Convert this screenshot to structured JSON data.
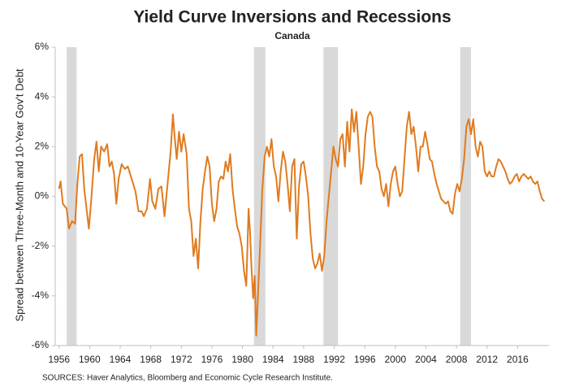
{
  "chart_data": {
    "type": "line",
    "title": "Yield Curve Inversions and Recessions",
    "subtitle": "Canada",
    "y_label": "Spread between Three-Month and 10-Year Gov't Debt",
    "source": "SOURCES: Haver Analytics, Bloomberg and Economic Cycle Research Institute.",
    "xlim": [
      1955.5,
      2020.1
    ],
    "xticks": [
      1956,
      1960,
      1964,
      1968,
      1972,
      1976,
      1980,
      1984,
      1988,
      1992,
      1996,
      2000,
      2004,
      2008,
      2012,
      2016
    ],
    "ylim": [
      -6,
      6
    ],
    "yticks": [
      {
        "value": 6,
        "label": "6%"
      },
      {
        "value": 4,
        "label": "4%"
      },
      {
        "value": 2,
        "label": "2%"
      },
      {
        "value": 0,
        "label": "0%"
      },
      {
        "value": -2,
        "label": "-2%"
      },
      {
        "value": -4,
        "label": "-4%"
      },
      {
        "value": -6,
        "label": "-6%"
      }
    ],
    "grid": false,
    "recession_color": "#d9d9d9",
    "recessions": [
      {
        "start": 1957.0,
        "end": 1958.3
      },
      {
        "start": 1981.5,
        "end": 1983.0
      },
      {
        "start": 1990.6,
        "end": 1992.5
      },
      {
        "start": 2008.5,
        "end": 2009.9
      }
    ],
    "series": [
      {
        "color": "#e07b1f",
        "x": [
          1956.0,
          1956.2,
          1956.5,
          1957.0,
          1957.3,
          1957.7,
          1958.1,
          1958.4,
          1958.7,
          1959.0,
          1959.3,
          1959.6,
          1959.9,
          1960.2,
          1960.6,
          1960.9,
          1961.2,
          1961.5,
          1961.9,
          1962.3,
          1962.6,
          1962.9,
          1963.2,
          1963.5,
          1963.8,
          1964.2,
          1964.6,
          1965.0,
          1965.3,
          1965.7,
          1966.0,
          1966.4,
          1966.8,
          1967.1,
          1967.5,
          1967.9,
          1968.2,
          1968.6,
          1969.0,
          1969.4,
          1969.8,
          1970.2,
          1970.6,
          1970.9,
          1971.1,
          1971.4,
          1971.7,
          1972.0,
          1972.3,
          1972.7,
          1973.0,
          1973.3,
          1973.6,
          1973.9,
          1974.2,
          1974.5,
          1974.8,
          1975.1,
          1975.4,
          1975.7,
          1976.0,
          1976.3,
          1976.6,
          1976.9,
          1977.2,
          1977.5,
          1977.8,
          1978.1,
          1978.4,
          1978.7,
          1979.0,
          1979.3,
          1979.6,
          1979.9,
          1980.2,
          1980.5,
          1980.8,
          1981.0,
          1981.2,
          1981.4,
          1981.6,
          1981.8,
          1982.0,
          1982.3,
          1982.6,
          1982.9,
          1983.2,
          1983.5,
          1983.8,
          1984.1,
          1984.4,
          1984.7,
          1985.0,
          1985.3,
          1985.6,
          1985.9,
          1986.2,
          1986.5,
          1986.8,
          1987.1,
          1987.4,
          1987.7,
          1988.0,
          1988.3,
          1988.6,
          1988.9,
          1989.2,
          1989.5,
          1989.8,
          1990.1,
          1990.4,
          1990.7,
          1991.0,
          1991.3,
          1991.6,
          1991.9,
          1992.2,
          1992.5,
          1992.8,
          1993.1,
          1993.4,
          1993.7,
          1994.0,
          1994.3,
          1994.6,
          1994.9,
          1995.2,
          1995.5,
          1995.8,
          1996.1,
          1996.4,
          1996.7,
          1997.0,
          1997.3,
          1997.6,
          1997.9,
          1998.2,
          1998.5,
          1998.8,
          1999.1,
          1999.4,
          1999.7,
          2000.0,
          2000.3,
          2000.6,
          2000.9,
          2001.2,
          2001.5,
          2001.8,
          2002.1,
          2002.4,
          2002.7,
          2003.0,
          2003.3,
          2003.6,
          2003.9,
          2004.2,
          2004.5,
          2004.8,
          2005.1,
          2005.4,
          2005.7,
          2006.0,
          2006.3,
          2006.6,
          2006.9,
          2007.2,
          2007.5,
          2007.8,
          2008.1,
          2008.4,
          2008.7,
          2009.0,
          2009.3,
          2009.6,
          2009.9,
          2010.2,
          2010.5,
          2010.8,
          2011.1,
          2011.4,
          2011.7,
          2012.0,
          2012.3,
          2012.6,
          2012.9,
          2013.2,
          2013.5,
          2013.8,
          2014.1,
          2014.4,
          2014.7,
          2015.0,
          2015.3,
          2015.6,
          2015.9,
          2016.2,
          2016.5,
          2016.8,
          2017.1,
          2017.4,
          2017.7,
          2018.0,
          2018.3,
          2018.6,
          2018.9,
          2019.2,
          2019.5
        ],
        "values": [
          0.3,
          0.6,
          -0.3,
          -0.5,
          -1.3,
          -1.0,
          -1.1,
          0.5,
          1.6,
          1.7,
          0.3,
          -0.5,
          -1.3,
          -0.2,
          1.5,
          2.2,
          1.0,
          2.0,
          1.8,
          2.1,
          1.2,
          1.4,
          0.9,
          -0.3,
          0.7,
          1.3,
          1.1,
          1.2,
          0.9,
          0.5,
          0.2,
          -0.6,
          -0.6,
          -0.8,
          -0.5,
          0.7,
          -0.2,
          -0.5,
          0.3,
          0.4,
          -0.8,
          0.5,
          1.8,
          3.3,
          2.5,
          1.5,
          2.6,
          1.8,
          2.5,
          1.7,
          -0.5,
          -1.0,
          -2.4,
          -1.7,
          -2.9,
          -1.0,
          0.3,
          1.0,
          1.6,
          1.2,
          -0.3,
          -1.0,
          -0.5,
          0.6,
          0.8,
          0.7,
          1.4,
          1.0,
          1.7,
          0.3,
          -0.5,
          -1.2,
          -1.5,
          -2.0,
          -3.0,
          -3.6,
          -0.5,
          -1.5,
          -3.0,
          -4.1,
          -3.2,
          -5.6,
          -4.2,
          -2.0,
          0.3,
          1.6,
          2.0,
          1.6,
          2.3,
          1.2,
          0.8,
          -0.2,
          1.0,
          1.8,
          1.4,
          0.5,
          -0.6,
          1.2,
          1.5,
          -1.7,
          0.4,
          1.3,
          1.4,
          0.8,
          0.0,
          -1.5,
          -2.5,
          -2.9,
          -2.7,
          -2.3,
          -3.0,
          -2.4,
          -1.0,
          0.0,
          1.0,
          2.0,
          1.5,
          1.2,
          2.3,
          2.5,
          1.2,
          3.0,
          1.8,
          3.5,
          2.6,
          3.4,
          2.0,
          0.5,
          1.2,
          2.5,
          3.2,
          3.4,
          3.2,
          2.0,
          1.2,
          1.0,
          0.3,
          0.0,
          0.5,
          -0.4,
          0.5,
          1.0,
          1.2,
          0.5,
          0.0,
          0.2,
          1.5,
          2.8,
          3.4,
          2.5,
          2.8,
          2.0,
          1.0,
          2.0,
          2.0,
          2.6,
          2.1,
          1.5,
          1.4,
          0.9,
          0.5,
          0.2,
          -0.1,
          -0.2,
          -0.3,
          -0.2,
          -0.6,
          -0.7,
          0.1,
          0.5,
          0.2,
          0.7,
          1.5,
          2.8,
          3.1,
          2.5,
          3.1,
          2.0,
          1.6,
          2.2,
          2.0,
          1.0,
          0.8,
          1.0,
          0.8,
          0.8,
          1.2,
          1.5,
          1.4,
          1.2,
          1.0,
          0.7,
          0.5,
          0.6,
          0.8,
          0.9,
          0.6,
          0.8,
          0.9,
          0.8,
          0.7,
          0.8,
          0.6,
          0.5,
          0.6,
          0.2,
          -0.1,
          -0.2
        ]
      }
    ]
  }
}
